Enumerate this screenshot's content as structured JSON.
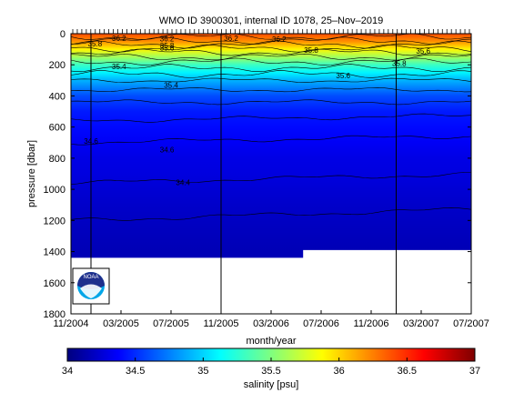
{
  "chart_data": {
    "type": "heatmap",
    "title": "WMO ID 3900301, internal ID 1078, 25–Nov–2019",
    "xlabel": "month/year",
    "ylabel": "pressure [dbar]",
    "colorbar_label": "salinity [psu]",
    "x_ticks": [
      "11/2004",
      "03/2005",
      "07/2005",
      "11/2005",
      "03/2006",
      "07/2006",
      "11/2006",
      "03/2007",
      "07/2007"
    ],
    "y_ticks": [
      0,
      200,
      400,
      600,
      800,
      1000,
      1200,
      1400,
      1600,
      1800
    ],
    "ylim": [
      1800,
      0
    ],
    "colorbar_ticks": [
      34,
      34.5,
      35,
      35.5,
      36,
      36.5,
      37
    ],
    "clim": [
      34,
      37
    ],
    "colormap": "jet",
    "colormap_stops": [
      "#00007f",
      "#0000ff",
      "#007fff",
      "#00ffff",
      "#7fff7f",
      "#ffff00",
      "#ff7f00",
      "#ff0000",
      "#7f0000"
    ],
    "vertical_markers": [
      "11/2004",
      "11/2005",
      "01/2007"
    ],
    "contour_labels": [
      "36.2",
      "36.2",
      "36.2",
      "36.2",
      "35.8",
      "35.8",
      "35.8",
      "35.8",
      "35.6",
      "35.6",
      "35.6",
      "35.4",
      "35.4",
      "34.6",
      "34.6",
      "34.4"
    ],
    "profile_pressures": [
      0,
      50,
      100,
      150,
      200,
      250,
      300,
      350,
      400,
      500,
      600,
      700,
      800,
      900,
      1000,
      1100,
      1200,
      1300,
      1400
    ],
    "salinity_profile": [
      36.4,
      36.2,
      35.9,
      35.6,
      35.3,
      35.1,
      34.9,
      34.75,
      34.6,
      34.45,
      34.4,
      34.35,
      34.3,
      34.28,
      34.25,
      34.22,
      34.2,
      34.18,
      34.16
    ],
    "max_depth_first_year": 1440,
    "max_depth_later": 1390,
    "grid": false
  },
  "logo": {
    "label": "NOAA"
  }
}
